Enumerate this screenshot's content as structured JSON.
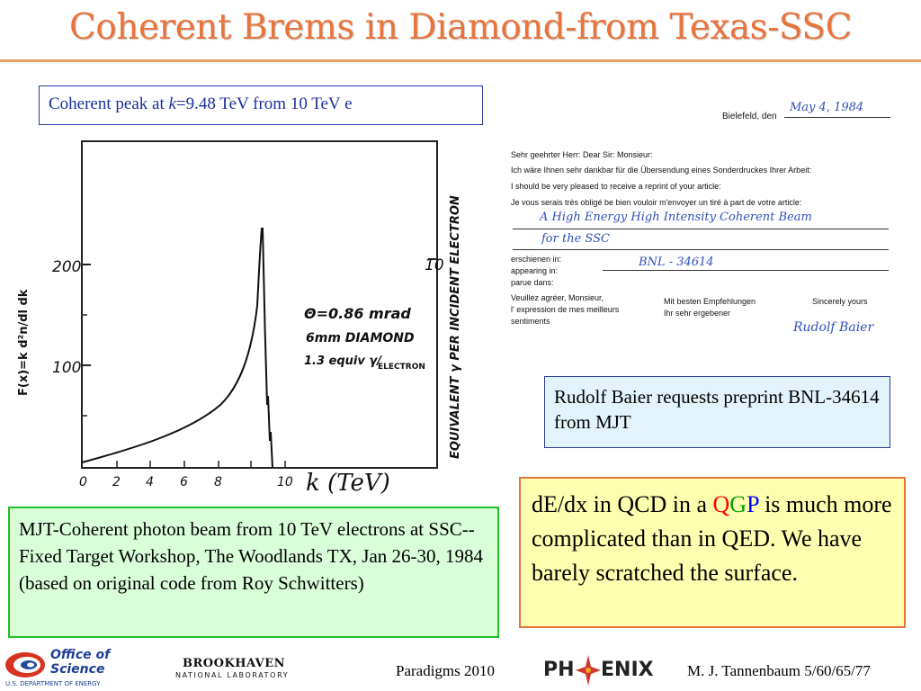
{
  "slide": {
    "title": "Coherent Brems in Diamond-from Texas-SSC"
  },
  "captions": {
    "peak_prefix": "Coherent peak at ",
    "peak_var": "k",
    "peak_suffix": "=9.48 TeV from 10 TeV e",
    "baier": "Rudolf Baier requests preprint BNL-34614 from MJT",
    "mjt": "MJT-Coherent photon beam from 10 TeV electrons at SSC--Fixed Target Workshop, The Woodlands TX, Jan 26-30, 1984  (based on original code from Roy Schwitters)",
    "qgp_prefix": "dE/dx in QCD in a ",
    "qgp_q": "Q",
    "qgp_g": "G",
    "qgp_p": "P",
    "qgp_suffix": " is much more complicated than in QED. We have barely scratched the surface."
  },
  "plot": {
    "ylabel": "F(x)=k d²n/dl dk",
    "xlabel": "k (TeV)",
    "right_label": "EQUIVALENT γ PER INCIDENT ELECTRON",
    "annotation_line1": "Θ=0.86 mrad",
    "annotation_line2": "6mm DIAMOND",
    "annotation_line3": "1.3 equiv γ/",
    "annotation_line3b": "ELECTRON",
    "left_ticks": [
      "200",
      "100"
    ],
    "right_tick": "10",
    "x_ticks": [
      "0",
      "2",
      "4",
      "6",
      "8",
      "10"
    ]
  },
  "letter": {
    "place": "Bielefeld, den",
    "date": "May 4, 1984",
    "greeting": "Sehr geehrter Herr: Dear Sir: Monsieur:",
    "line_de": "Ich wäre Ihnen sehr dankbar für die Übersendung eines Sonderdruckes Ihrer Arbeit:",
    "line_en": "I should be very pleased to receive a reprint of your article:",
    "line_fr": "Je vous serais très obligé be bien vouloir m'envoyer un tiré à part de votre article:",
    "article_line1": "A High Energy High Intensity Coherent Beam",
    "article_line2": "for the SSC",
    "appearing_de": "erschienen in:",
    "appearing_en": "appearing in:",
    "appearing_fr": "parue dans:",
    "appearing_value": "BNL - 34614",
    "closing_left1": "Veuillez agréer, Monsieur,",
    "closing_left2": "l' expression de mes meilleurs",
    "closing_left3": "sentiments",
    "closing_mid1": "Mit besten Empfehlungen",
    "closing_mid2": "Ihr sehr ergebener",
    "closing_right": "Sincerely yours",
    "signature": "Rudolf Baier"
  },
  "footer": {
    "office_line1": "Office of",
    "office_line2": "Science",
    "office_line3": "U.S. DEPARTMENT OF ENERGY",
    "bnl_line1": "BROOKHAVEN",
    "bnl_line2": "NATIONAL LABORATORY",
    "conference": "Paradigms 2010",
    "phenix_a": "PH",
    "phenix_b": "ENIX",
    "author": "M. J. Tannenbaum   5/60/65/77"
  },
  "colors": {
    "title": "#e8743b",
    "blue_box_border": "#2a3c9c",
    "green_box_border": "#22c022",
    "orange_box_border": "#e8743b",
    "pen_ink": "#3050b8"
  }
}
